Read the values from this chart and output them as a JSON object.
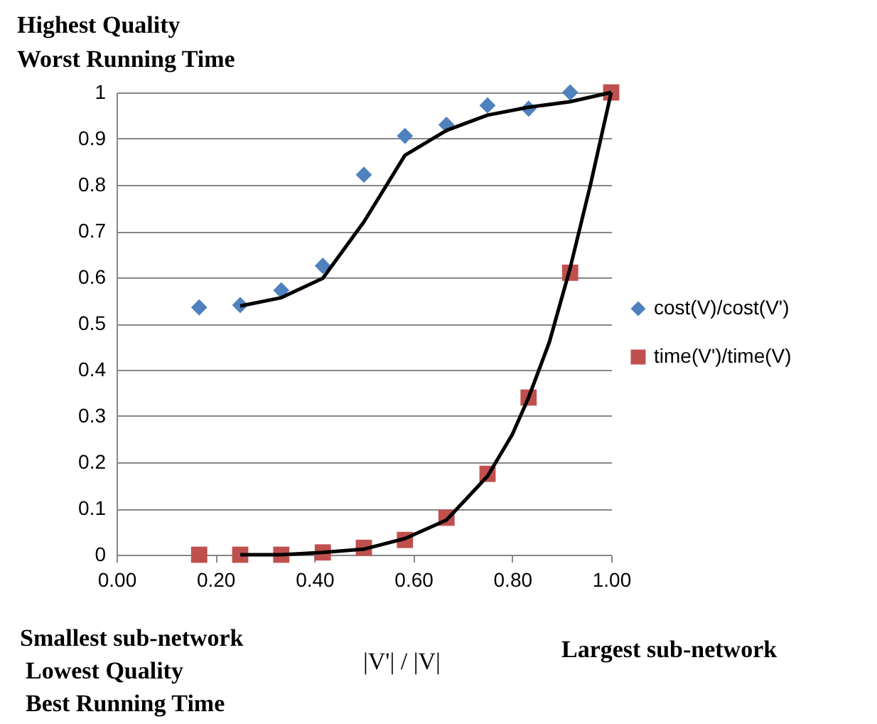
{
  "chart_data": {
    "type": "scatter",
    "annotations": [
      "Highest Quality",
      "Worst Running Time",
      "Smallest sub-network",
      "Lowest Quality",
      "Best  Running Time",
      "Largest sub-network"
    ],
    "xlabel": "|V'| / |V|",
    "x": [
      0.167,
      0.25,
      0.333,
      0.417,
      0.5,
      0.583,
      0.667,
      0.75,
      0.833,
      0.917,
      1.0
    ],
    "series": [
      {
        "name": "cost(V)/cost(V')",
        "color": "#4f81bd",
        "marker": "diamond",
        "values": [
          0.535,
          0.54,
          0.572,
          0.625,
          0.822,
          0.906,
          0.93,
          0.972,
          0.965,
          1.0,
          null
        ]
      },
      {
        "name": "time(V')/time(V)",
        "color": "#c0504d",
        "marker": "square",
        "values": [
          0,
          0,
          0,
          0.005,
          0.015,
          0.032,
          0.08,
          0.175,
          0.34,
          0.61,
          1.0
        ]
      },
      {
        "type": "line",
        "color": "#000000",
        "marker": "none",
        "x": [
          0.25,
          0.333,
          0.417,
          0.5,
          0.583,
          0.667,
          0.75,
          0.833,
          0.917,
          1.0
        ],
        "values": [
          0.538,
          0.556,
          0.598,
          0.72,
          0.864,
          0.918,
          0.951,
          0.968,
          0.98,
          1.0
        ]
      },
      {
        "type": "line",
        "color": "#000000",
        "marker": "none",
        "x": [
          0.25,
          0.333,
          0.417,
          0.5,
          0.583,
          0.667,
          0.75,
          0.8,
          0.833,
          0.875,
          0.917,
          0.958,
          1.0
        ],
        "values": [
          0,
          0,
          0.005,
          0.012,
          0.035,
          0.075,
          0.17,
          0.26,
          0.34,
          0.46,
          0.62,
          0.8,
          1.0
        ]
      }
    ],
    "xlim": [
      0,
      1
    ],
    "xticks": [
      {
        "value": 0,
        "label": "0.00"
      },
      {
        "value": 0.2,
        "label": "0.20"
      },
      {
        "value": 0.4,
        "label": "0.40"
      },
      {
        "value": 0.6,
        "label": "0.60"
      },
      {
        "value": 0.8,
        "label": "0.80"
      },
      {
        "value": 1,
        "label": "1.00"
      }
    ],
    "ylim": [
      0,
      1
    ],
    "yticks": [
      0,
      0.1,
      0.2,
      0.3,
      0.4,
      0.5,
      0.6,
      0.7,
      0.8,
      0.9,
      1
    ],
    "grid": "y",
    "legend": "right"
  }
}
